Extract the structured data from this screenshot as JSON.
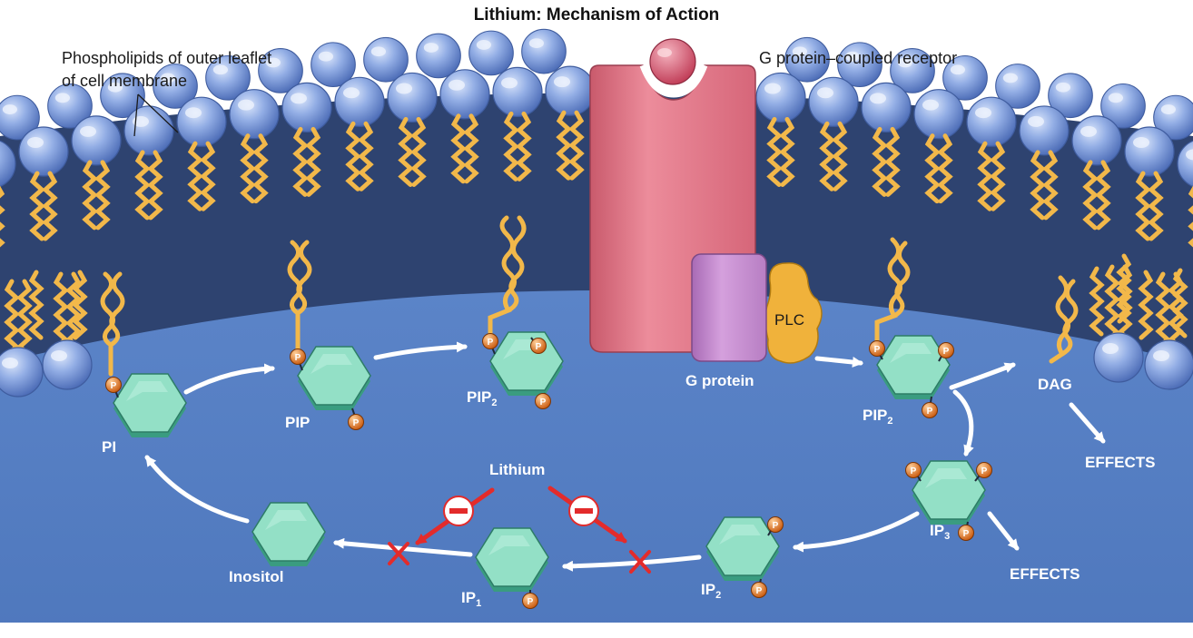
{
  "title": "Lithium: Mechanism of Action",
  "labels": {
    "membrane_line1": "Phospholipids of outer leaflet",
    "membrane_line2": "of cell membrane",
    "gpcr": "G protein–coupled receptor",
    "plc": "PLC",
    "g_protein": "G protein",
    "pi": "PI",
    "pip": "PIP",
    "pip2_base": "PIP",
    "pip2_sub": "2",
    "dag": "DAG",
    "effects": "EFFECTS",
    "ip3_base": "IP",
    "ip3_sub": "3",
    "ip2_base": "IP",
    "ip2_sub": "2",
    "ip1_base": "IP",
    "ip1_sub": "1",
    "inositol": "Inositol",
    "lithium": "Lithium",
    "phosphate": "P",
    "minus": "–"
  },
  "colors": {
    "membrane_bg": "#2e4370",
    "cytoplasm": "#5b84c8",
    "lipid_head": "#8aa6e0",
    "lipid_tail": "#f2b84a",
    "receptor": "#e47a8a",
    "g_protein": "#c68fd0",
    "plc": "#f0b23b",
    "ring_top": "#93e0c6",
    "ring_side": "#3a9c80",
    "phosphate": "#e87a1e",
    "inhibit": "#e32b2b"
  }
}
